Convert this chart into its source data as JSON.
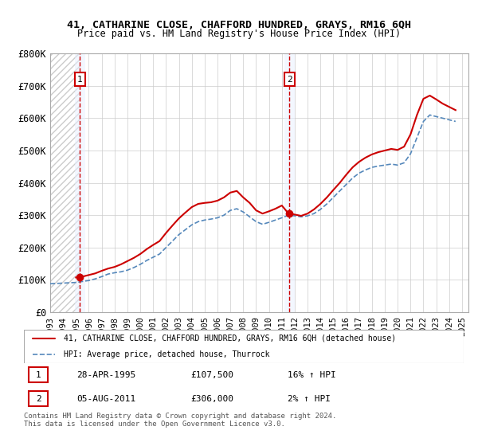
{
  "title": "41, CATHARINE CLOSE, CHAFFORD HUNDRED, GRAYS, RM16 6QH",
  "subtitle": "Price paid vs. HM Land Registry's House Price Index (HPI)",
  "ylabel": "",
  "xlabel": "",
  "ylim": [
    0,
    800000
  ],
  "yticks": [
    0,
    100000,
    200000,
    300000,
    400000,
    500000,
    600000,
    700000,
    800000
  ],
  "ytick_labels": [
    "£0",
    "£100K",
    "£200K",
    "£300K",
    "£400K",
    "£500K",
    "£600K",
    "£700K",
    "£800K"
  ],
  "xlim_start": 1993.0,
  "xlim_end": 2025.5,
  "xtick_years": [
    1993,
    1994,
    1995,
    1996,
    1997,
    1998,
    1999,
    2000,
    2001,
    2002,
    2003,
    2004,
    2005,
    2006,
    2007,
    2008,
    2009,
    2010,
    2011,
    2012,
    2013,
    2014,
    2015,
    2016,
    2017,
    2018,
    2019,
    2020,
    2021,
    2022,
    2023,
    2024,
    2025
  ],
  "sale1_x": 1995.32,
  "sale1_y": 107500,
  "sale1_label": "1",
  "sale2_x": 2011.59,
  "sale2_y": 306000,
  "sale2_label": "2",
  "sale_color": "#cc0000",
  "hpi_color": "#6699cc",
  "hpi_line_color": "#5588bb",
  "annotation_box_color": "#cc0000",
  "background_hatch_color": "#dddddd",
  "highlight_color": "#e8f0ff",
  "red_dashed_color": "#cc0000",
  "legend_line1": "41, CATHARINE CLOSE, CHAFFORD HUNDRED, GRAYS, RM16 6QH (detached house)",
  "legend_line2": "HPI: Average price, detached house, Thurrock",
  "table_row1": [
    "1",
    "28-APR-1995",
    "£107,500",
    "16% ↑ HPI"
  ],
  "table_row2": [
    "2",
    "05-AUG-2011",
    "£306,000",
    "2% ↑ HPI"
  ],
  "footnote": "Contains HM Land Registry data © Crown copyright and database right 2024.\nThis data is licensed under the Open Government Licence v3.0.",
  "hpi_data_x": [
    1993.0,
    1993.5,
    1994.0,
    1994.5,
    1995.0,
    1995.5,
    1996.0,
    1996.5,
    1997.0,
    1997.5,
    1998.0,
    1998.5,
    1999.0,
    1999.5,
    2000.0,
    2000.5,
    2001.0,
    2001.5,
    2002.0,
    2002.5,
    2003.0,
    2003.5,
    2004.0,
    2004.5,
    2005.0,
    2005.5,
    2006.0,
    2006.5,
    2007.0,
    2007.5,
    2008.0,
    2008.5,
    2009.0,
    2009.5,
    2010.0,
    2010.5,
    2011.0,
    2011.5,
    2012.0,
    2012.5,
    2013.0,
    2013.5,
    2014.0,
    2014.5,
    2015.0,
    2015.5,
    2016.0,
    2016.5,
    2017.0,
    2017.5,
    2018.0,
    2018.5,
    2019.0,
    2019.5,
    2020.0,
    2020.5,
    2021.0,
    2021.5,
    2022.0,
    2022.5,
    2023.0,
    2023.5,
    2024.0,
    2024.5
  ],
  "hpi_data_y": [
    88000,
    89000,
    90000,
    91000,
    92000,
    95000,
    98000,
    103000,
    110000,
    118000,
    122000,
    125000,
    130000,
    138000,
    148000,
    160000,
    170000,
    180000,
    200000,
    220000,
    240000,
    255000,
    270000,
    280000,
    285000,
    288000,
    292000,
    300000,
    315000,
    320000,
    310000,
    295000,
    280000,
    272000,
    278000,
    285000,
    292000,
    300000,
    298000,
    295000,
    298000,
    305000,
    318000,
    335000,
    355000,
    375000,
    395000,
    415000,
    430000,
    440000,
    448000,
    452000,
    455000,
    458000,
    455000,
    462000,
    490000,
    540000,
    590000,
    610000,
    605000,
    600000,
    595000,
    590000
  ],
  "price_paid_x": [
    1993.0,
    1993.5,
    1994.0,
    1994.5,
    1995.0,
    1995.5,
    1996.0,
    1996.5,
    1997.0,
    1997.5,
    1998.0,
    1998.5,
    1999.0,
    1999.5,
    2000.0,
    2000.5,
    2001.0,
    2001.5,
    2002.0,
    2002.5,
    2003.0,
    2003.5,
    2004.0,
    2004.5,
    2005.0,
    2005.5,
    2006.0,
    2006.5,
    2007.0,
    2007.5,
    2008.0,
    2008.5,
    2009.0,
    2009.5,
    2010.0,
    2010.5,
    2011.0,
    2011.5,
    2012.0,
    2012.5,
    2013.0,
    2013.5,
    2014.0,
    2014.5,
    2015.0,
    2015.5,
    2016.0,
    2016.5,
    2017.0,
    2017.5,
    2018.0,
    2018.5,
    2019.0,
    2019.5,
    2020.0,
    2020.5,
    2021.0,
    2021.5,
    2022.0,
    2022.5,
    2023.0,
    2023.5,
    2024.0,
    2024.5
  ],
  "price_paid_y": [
    null,
    null,
    null,
    null,
    107500,
    110000,
    115000,
    120000,
    128000,
    135000,
    140000,
    148000,
    158000,
    168000,
    180000,
    195000,
    208000,
    220000,
    245000,
    268000,
    290000,
    308000,
    325000,
    335000,
    338000,
    340000,
    345000,
    355000,
    370000,
    375000,
    355000,
    338000,
    315000,
    305000,
    312000,
    320000,
    330000,
    306000,
    302000,
    298000,
    305000,
    318000,
    335000,
    355000,
    378000,
    400000,
    425000,
    448000,
    465000,
    478000,
    488000,
    495000,
    500000,
    505000,
    502000,
    512000,
    550000,
    610000,
    660000,
    670000,
    658000,
    645000,
    635000,
    625000
  ]
}
